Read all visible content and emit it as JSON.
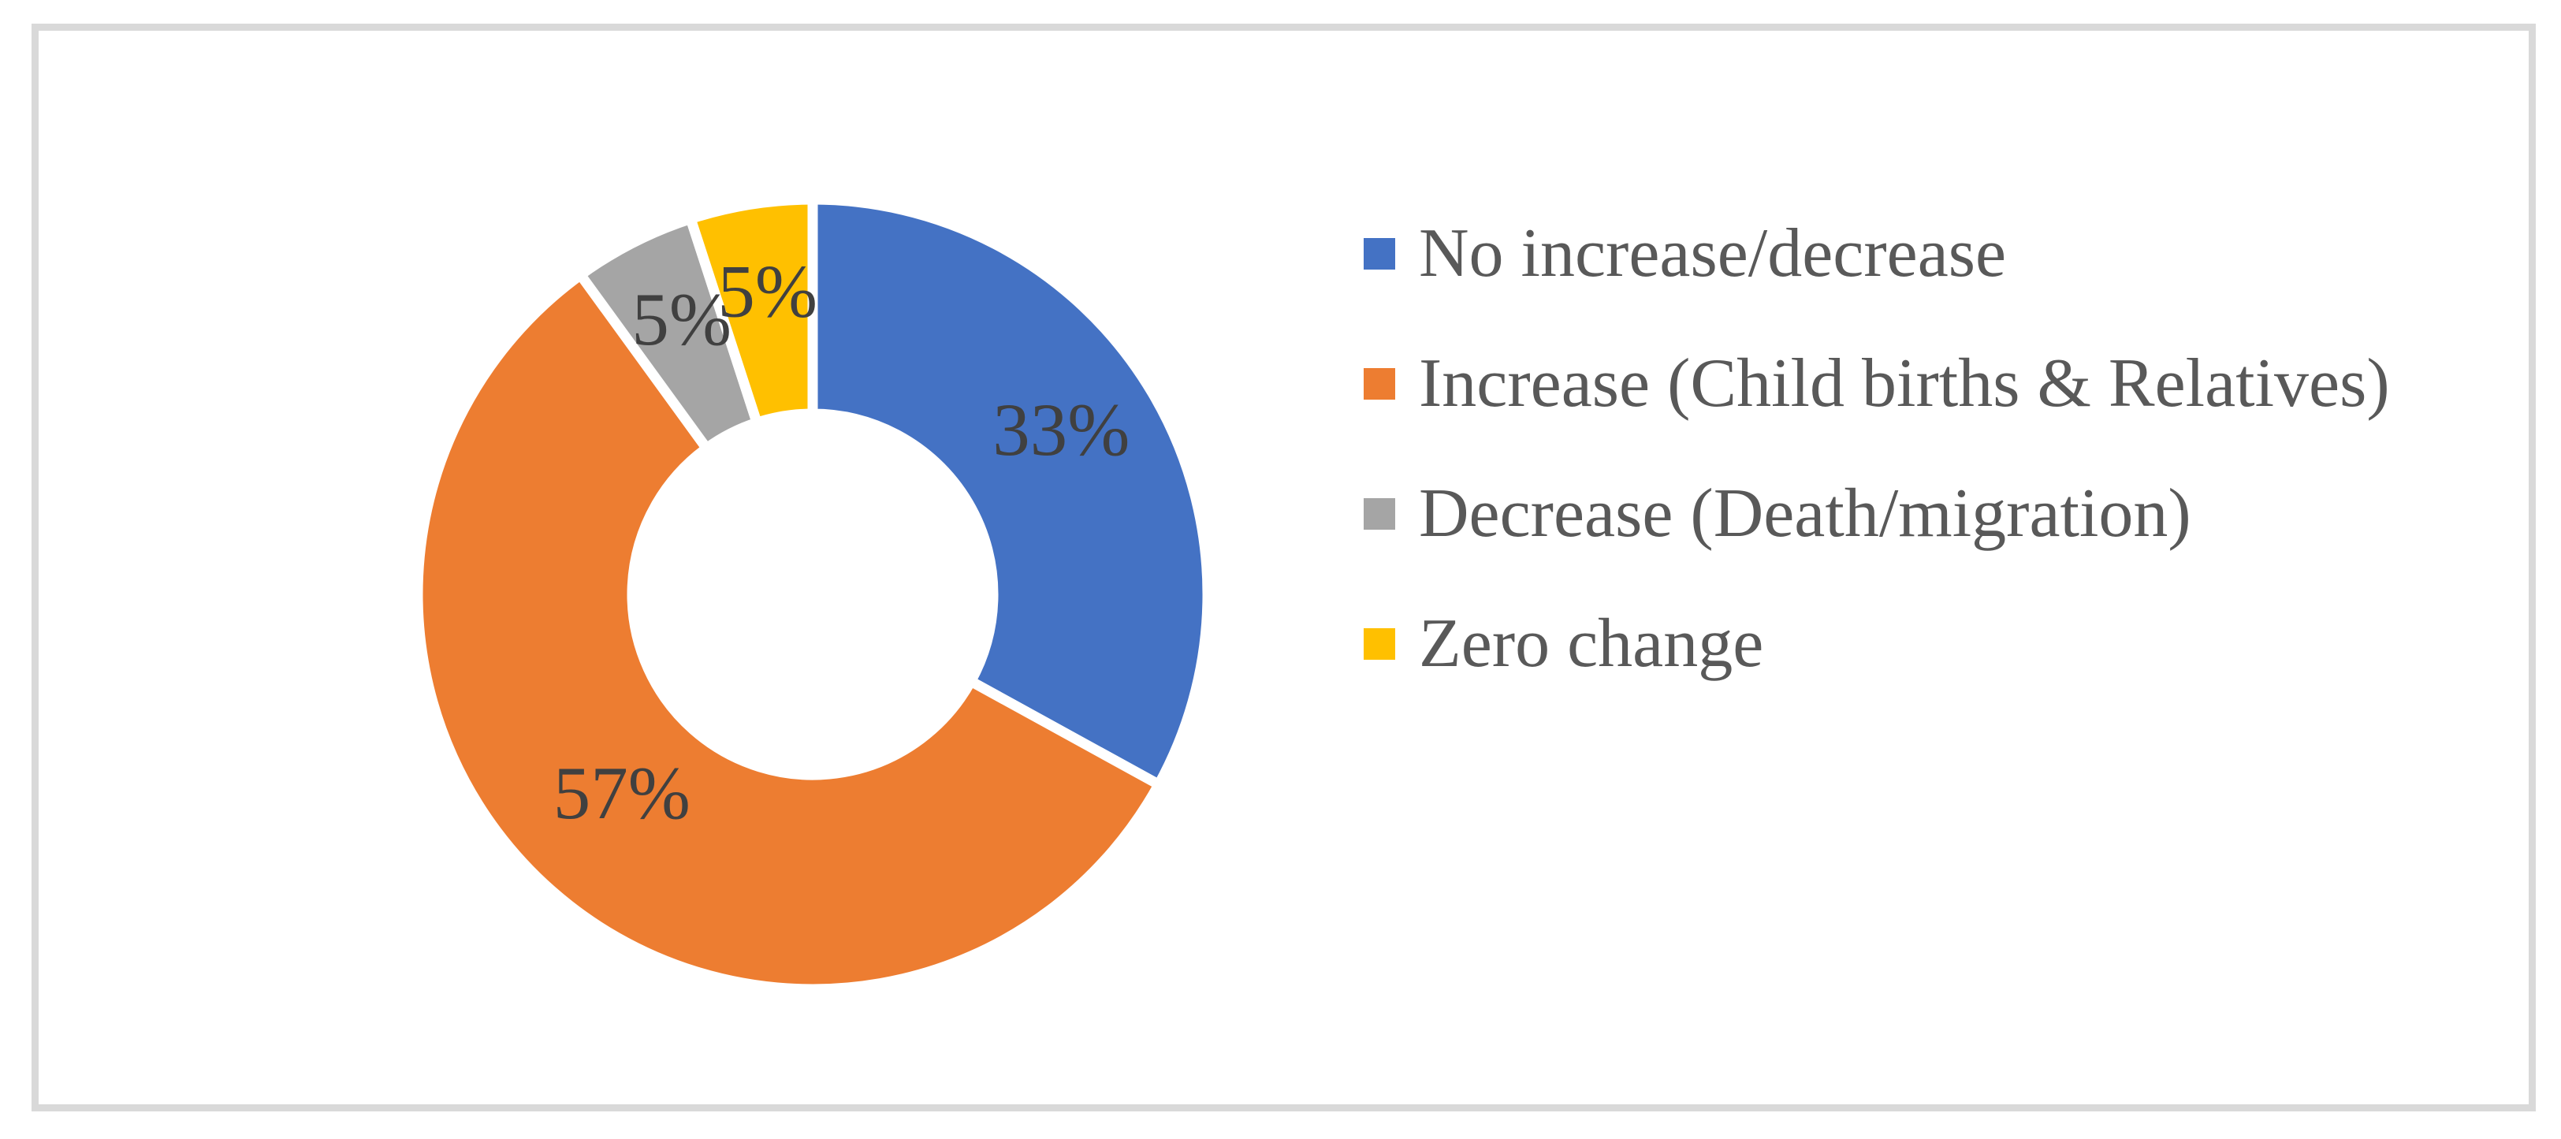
{
  "figure": {
    "background_color": "#ffffff",
    "border_color": "#d9d9d9"
  },
  "chart_data": {
    "type": "pie",
    "subtype": "donut",
    "title": "",
    "direction": "clockwise",
    "start_angle_deg": 0,
    "donut_hole_ratio": 0.47,
    "legend_position": "right",
    "grid": false,
    "data_label_color": "#404040",
    "legend_text_color": "#595959",
    "slice_separator_color": "#ffffff",
    "categories": [
      "No increase/decrease",
      "Increase (Child births & Relatives)",
      "Decrease (Death/migration)",
      "Zero change"
    ],
    "values": [
      33,
      57,
      5,
      5
    ],
    "segments": [
      {
        "label": "No increase/decrease",
        "value": 33,
        "display": "33%",
        "color": "#4472C4"
      },
      {
        "label": "Increase (Child births & Relatives)",
        "value": 57,
        "display": "57%",
        "color": "#ED7D31"
      },
      {
        "label": "Decrease (Death/migration)",
        "value": 5,
        "display": "5%",
        "color": "#A5A5A5"
      },
      {
        "label": "Zero change",
        "value": 5,
        "display": "5%",
        "color": "#FFC000"
      }
    ]
  }
}
